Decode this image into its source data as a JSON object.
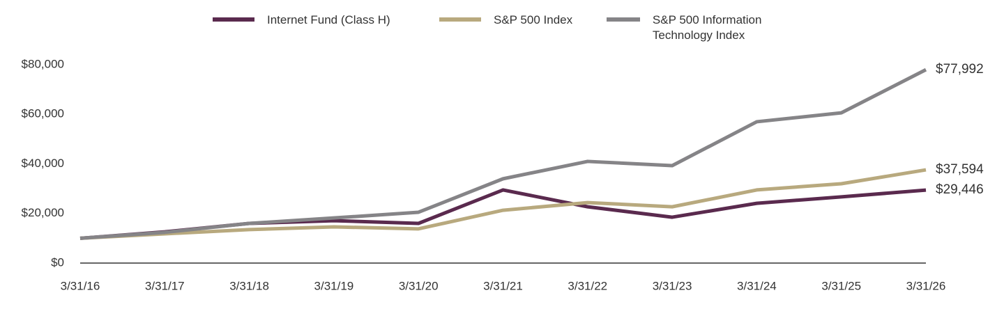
{
  "chart_data": {
    "type": "line",
    "categories": [
      "3/31/16",
      "3/31/17",
      "3/31/18",
      "3/31/19",
      "3/31/20",
      "3/31/21",
      "3/31/22",
      "3/31/23",
      "3/31/24",
      "3/31/25",
      "3/31/26"
    ],
    "series": [
      {
        "name": "Internet Fund (Class H)",
        "color": "#5a2a4e",
        "values": [
          10000,
          12600,
          16000,
          17100,
          16000,
          29500,
          22700,
          18500,
          24100,
          26700,
          29446
        ],
        "value_labels": [
          null,
          null,
          null,
          null,
          null,
          null,
          null,
          null,
          null,
          null,
          "$29,446"
        ]
      },
      {
        "name": "S&P 500 Index",
        "color": "#b8a97e",
        "values": [
          10000,
          11800,
          13500,
          14600,
          13800,
          21300,
          24400,
          22700,
          29500,
          32000,
          37594
        ],
        "value_labels": [
          null,
          null,
          null,
          null,
          null,
          null,
          null,
          null,
          null,
          null,
          "$37,594"
        ]
      },
      {
        "name": "S&P 500 Information Technology Index",
        "color": "#858487",
        "values": [
          10000,
          12400,
          16000,
          18200,
          20500,
          34000,
          41000,
          39300,
          57000,
          60600,
          77992
        ],
        "value_labels": [
          null,
          null,
          null,
          null,
          null,
          null,
          null,
          null,
          null,
          null,
          "$77,992"
        ]
      }
    ],
    "ylim": [
      0,
      80000
    ],
    "yticks": [
      {
        "value": 0,
        "label": "$0"
      },
      {
        "value": 20000,
        "label": "$20,000"
      },
      {
        "value": 40000,
        "label": "$40,000"
      },
      {
        "value": 60000,
        "label": "$60,000"
      },
      {
        "value": 80000,
        "label": "$80,000"
      }
    ],
    "grid": false
  }
}
